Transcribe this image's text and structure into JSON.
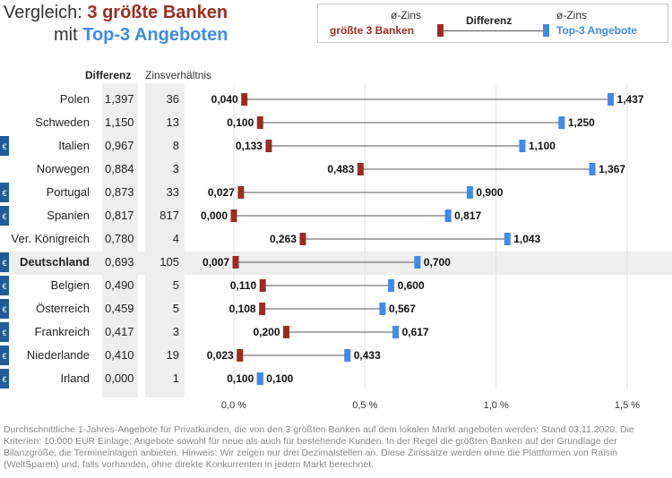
{
  "title": {
    "line1_prefix": "Vergleich: ",
    "line1_highlight": "3 größte Banken",
    "line2_prefix": "mit ",
    "line2_highlight": "Top-3 Angeboten"
  },
  "legend": {
    "left_top": "ø-Zins",
    "left_bottom": "größte 3 Banken",
    "middle": "Differenz",
    "right_top": "ø-Zins",
    "right_bottom": "Top-3 Angebote"
  },
  "columns": {
    "diff_header": "Differenz",
    "ratio_header": "Zinsverhältnis"
  },
  "euro_symbol": "€",
  "highlight_row": "Deutschland",
  "colors": {
    "big_banks": "#9b2d20",
    "top3": "#3d8bea",
    "title_red": "#9b2d20",
    "title_blue": "#3d8bea",
    "euro_badge": "#1f5c99",
    "highlight_bg": "#eeeeee",
    "column_bg": "#eeeeee"
  },
  "chart_data": {
    "type": "dumbbell",
    "x_unit": "%",
    "xlim": [
      0,
      1.5
    ],
    "xticks": [
      0.0,
      0.5,
      1.0,
      1.5
    ],
    "xtick_labels": [
      "0,0 %",
      "0,5 %",
      "1,0 %",
      "1,5 %"
    ],
    "grid": "vertical",
    "series": [
      {
        "name": "größte 3 Banken",
        "key": "big"
      },
      {
        "name": "Top-3 Angebote",
        "key": "top"
      }
    ],
    "rows": [
      {
        "country": "Polen",
        "euro": false,
        "diff": "1,397",
        "ratio": "36",
        "big": 0.04,
        "top": 1.437,
        "big_label": "0,040",
        "top_label": "1,437"
      },
      {
        "country": "Schweden",
        "euro": false,
        "diff": "1,150",
        "ratio": "13",
        "big": 0.1,
        "top": 1.25,
        "big_label": "0,100",
        "top_label": "1,250"
      },
      {
        "country": "Italien",
        "euro": true,
        "diff": "0,967",
        "ratio": "8",
        "big": 0.133,
        "top": 1.1,
        "big_label": "0,133",
        "top_label": "1,100"
      },
      {
        "country": "Norwegen",
        "euro": false,
        "diff": "0,884",
        "ratio": "3",
        "big": 0.483,
        "top": 1.367,
        "big_label": "0,483",
        "top_label": "1,367"
      },
      {
        "country": "Portugal",
        "euro": true,
        "diff": "0,873",
        "ratio": "33",
        "big": 0.027,
        "top": 0.9,
        "big_label": "0,027",
        "top_label": "0,900"
      },
      {
        "country": "Spanien",
        "euro": true,
        "diff": "0,817",
        "ratio": "817",
        "big": 0.0,
        "top": 0.817,
        "big_label": "0,000",
        "top_label": "0,817"
      },
      {
        "country": "Ver. Königreich",
        "euro": false,
        "diff": "0,780",
        "ratio": "4",
        "big": 0.263,
        "top": 1.043,
        "big_label": "0,263",
        "top_label": "1,043"
      },
      {
        "country": "Deutschland",
        "euro": true,
        "diff": "0,693",
        "ratio": "105",
        "big": 0.007,
        "top": 0.7,
        "big_label": "0,007",
        "top_label": "0,700"
      },
      {
        "country": "Belgien",
        "euro": true,
        "diff": "0,490",
        "ratio": "5",
        "big": 0.11,
        "top": 0.6,
        "big_label": "0,110",
        "top_label": "0,600"
      },
      {
        "country": "Österreich",
        "euro": true,
        "diff": "0,459",
        "ratio": "5",
        "big": 0.108,
        "top": 0.567,
        "big_label": "0,108",
        "top_label": "0,567"
      },
      {
        "country": "Frankreich",
        "euro": true,
        "diff": "0,417",
        "ratio": "3",
        "big": 0.2,
        "top": 0.617,
        "big_label": "0,200",
        "top_label": "0,617"
      },
      {
        "country": "Niederlande",
        "euro": true,
        "diff": "0,410",
        "ratio": "19",
        "big": 0.023,
        "top": 0.433,
        "big_label": "0,023",
        "top_label": "0,433"
      },
      {
        "country": "Irland",
        "euro": true,
        "diff": "0,000",
        "ratio": "1",
        "big": 0.1,
        "top": 0.1,
        "big_label": "0,100",
        "top_label": "0,100"
      }
    ]
  },
  "footnote": "Durchschnittliche 1-Jahres-Angebote für Privatkunden, die von den 3 größten Banken auf dem lokalen Markt angeboten werden; Stand 03.11.2020. Die Kriterien: 10.000 EUR Einlage; Angebote sowohl für neue als auch für bestehende Kunden. In der Regel die größten Banken auf der Grundlage der Bilanzgröße, die Termineinlagen anbieten. Hinweis: Wir zeigen nur drei Dezimalstellen an. Diese Zinssätze werden ohne die Plattformen von Raisin (WeltSparen) und, falls vorhanden, ohne direkte Konkurrenten in jedem Markt berechnet."
}
